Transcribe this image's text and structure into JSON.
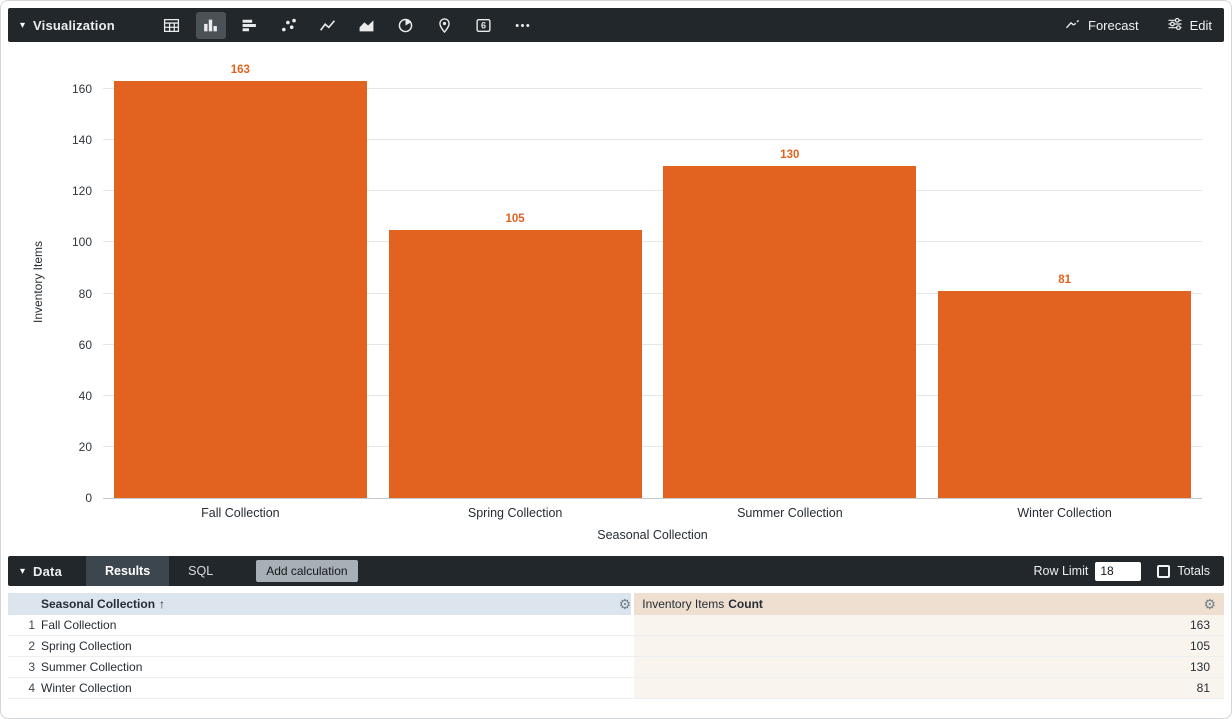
{
  "colors": {
    "bar_orange": "#E2621F",
    "topbar_bg": "#22272C",
    "dimension_header_bg": "#DCE5EE",
    "measure_header_bg": "#EFDFD0",
    "measure_cell_bg": "#FAF4EE"
  },
  "viz_panel": {
    "title": "Visualization",
    "icons": [
      "table",
      "column-chart",
      "bar-chart",
      "scatter",
      "line-chart",
      "area-chart",
      "pie-chart",
      "map",
      "single-value",
      "more"
    ],
    "selected_icon": "column-chart",
    "actions": {
      "forecast": "Forecast",
      "edit": "Edit"
    }
  },
  "chart_data": {
    "type": "bar",
    "categories": [
      "Fall Collection",
      "Spring Collection",
      "Summer Collection",
      "Winter Collection"
    ],
    "values": [
      163,
      105,
      130,
      81
    ],
    "title": "",
    "xlabel": "Seasonal Collection",
    "ylabel": "Inventory Items",
    "ylim": [
      0,
      169
    ],
    "yticks": [
      0,
      20,
      40,
      60,
      80,
      100,
      120,
      140,
      160
    ],
    "grid": true,
    "bar_color": "#E2621F",
    "value_labels": [
      163,
      105,
      130,
      81
    ],
    "legend": "none"
  },
  "data_panel": {
    "title": "Data",
    "tabs": [
      "Results",
      "SQL"
    ],
    "active_tab": "Results",
    "add_calculation_label": "Add calculation",
    "row_limit_label": "Row Limit",
    "row_limit_value": "18",
    "totals_label": "Totals",
    "totals_checked": false
  },
  "table": {
    "columns": [
      {
        "label": "Seasonal Collection",
        "sort_arrow": "↑",
        "type": "dimension"
      },
      {
        "label": "Inventory Items",
        "sub_label": "Count",
        "type": "measure"
      }
    ],
    "rows": [
      {
        "index": "1",
        "dimension": "Fall Collection",
        "measure": "163"
      },
      {
        "index": "2",
        "dimension": "Spring Collection",
        "measure": "105"
      },
      {
        "index": "3",
        "dimension": "Summer Collection",
        "measure": "130"
      },
      {
        "index": "4",
        "dimension": "Winter Collection",
        "measure": "81"
      }
    ]
  }
}
